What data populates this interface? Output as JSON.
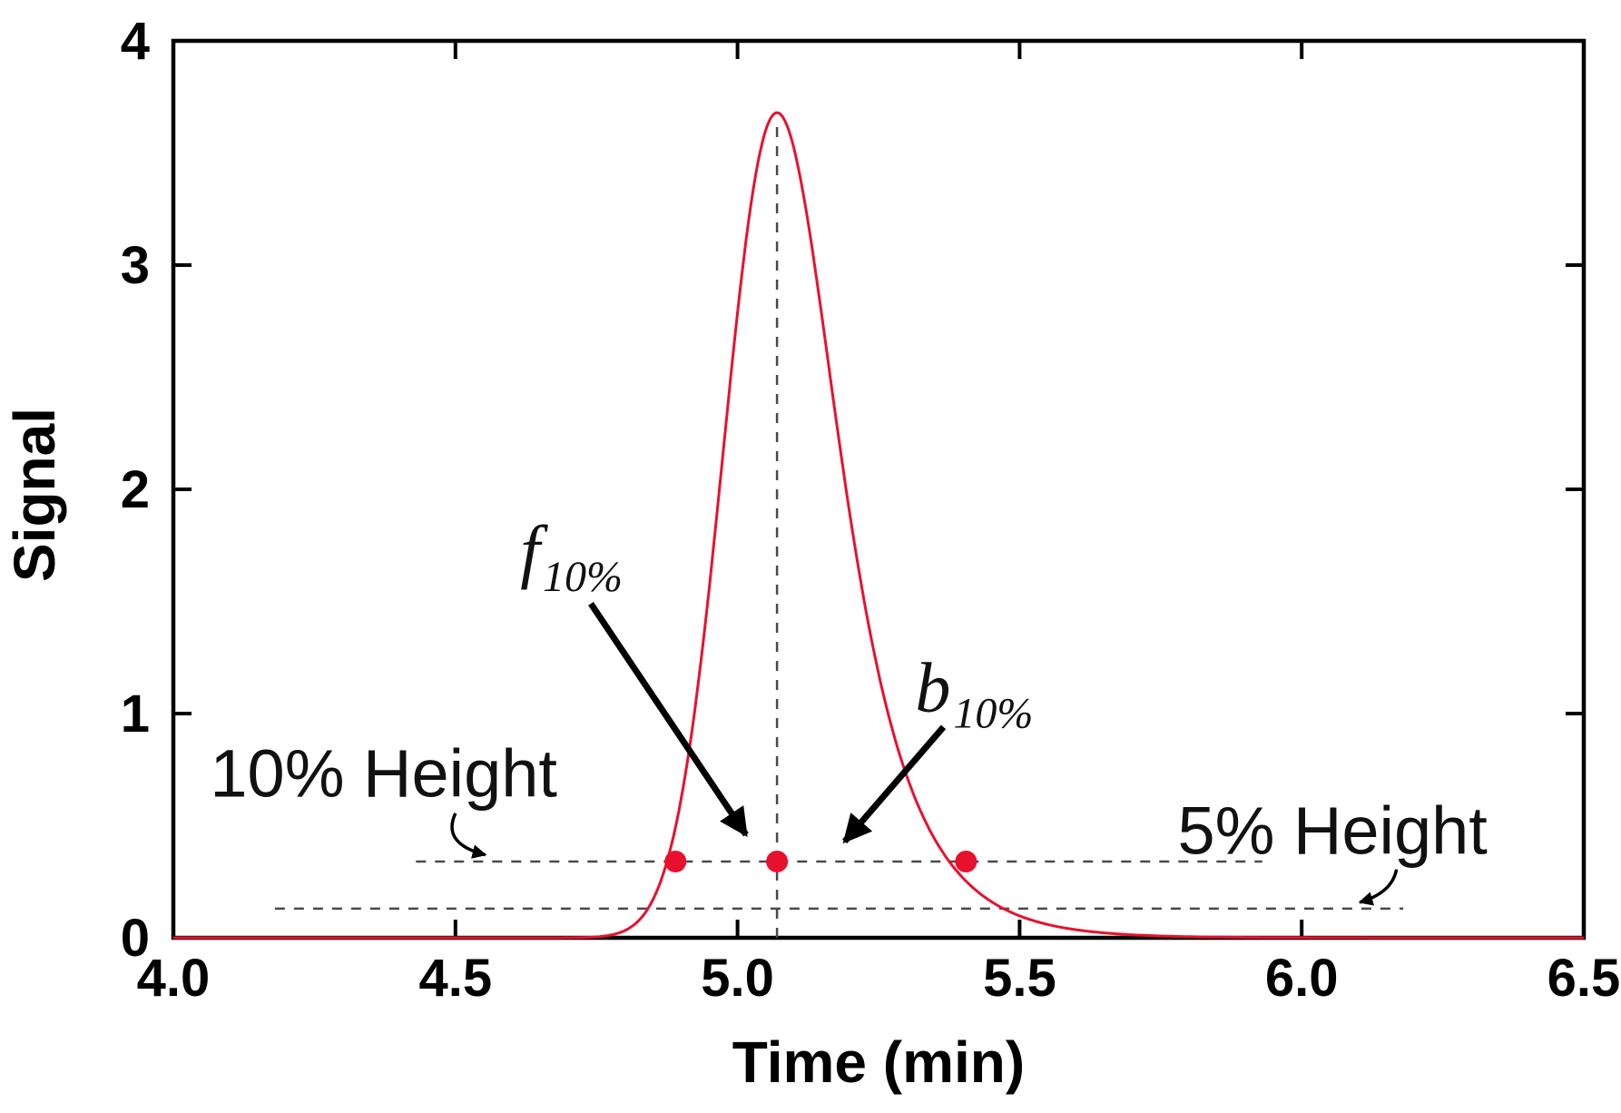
{
  "chart_data": {
    "type": "line",
    "title": "",
    "xlabel": "Time (min)",
    "ylabel": "Signal",
    "xlim": [
      4.0,
      6.5
    ],
    "ylim": [
      0,
      4
    ],
    "grid": false,
    "legend": "none",
    "x_ticks": [
      4.0,
      4.5,
      5.0,
      5.5,
      6.0,
      6.5
    ],
    "x_tick_labels": [
      "4.0",
      "4.5",
      "5.0",
      "5.5",
      "6.0",
      "6.5"
    ],
    "y_ticks": [
      0,
      1,
      2,
      3,
      4
    ],
    "y_tick_labels": [
      "0",
      "1",
      "2",
      "3",
      "4"
    ],
    "peak": {
      "model": "exponentially_modified_gaussian",
      "description": "tailing chromatographic peak",
      "gaussian_center": 5.0,
      "sigma": 0.078,
      "tau": 0.1,
      "apex_time": 5.07,
      "apex_height": 3.68,
      "color": "#e8112d"
    },
    "apex_line": {
      "x": 5.07,
      "y0": 0,
      "y1": 3.64,
      "style": "dashed"
    },
    "ten_pct_line": {
      "y": 0.34,
      "x0": 4.43,
      "x1": 5.93,
      "style": "dashed"
    },
    "five_pct_line": {
      "y": 0.13,
      "x0": 4.18,
      "x1": 6.18,
      "style": "dashed"
    },
    "marker_color": "#e8112d",
    "markers": [
      {
        "x": 4.89,
        "y": 0.34,
        "meaning": "front crossing at 10% height"
      },
      {
        "x": 5.07,
        "y": 0.34,
        "meaning": "apex line at 10% height"
      },
      {
        "x": 5.405,
        "y": 0.34,
        "meaning": "back crossing at 10% height"
      }
    ],
    "annotations": [
      {
        "id": "f10",
        "kind": "math",
        "main": "f",
        "sub": "10%",
        "text_x": 4.615,
        "text_y": 1.62,
        "arrow": {
          "x1": 4.74,
          "y1": 1.49,
          "x2": 5.015,
          "y2": 0.46,
          "width": "thick"
        }
      },
      {
        "id": "b10",
        "kind": "math",
        "main": "b",
        "sub": "10%",
        "text_x": 5.315,
        "text_y": 1.01,
        "arrow": {
          "x1": 5.365,
          "y1": 0.94,
          "x2": 5.19,
          "y2": 0.43,
          "width": "thick"
        }
      },
      {
        "id": "h10",
        "kind": "plain",
        "text": "10% Height",
        "text_x": 4.065,
        "text_y": 0.63,
        "arrow": {
          "x1": 4.5,
          "y1": 0.555,
          "cx": 4.475,
          "cy": 0.42,
          "x2": 4.553,
          "y2": 0.37,
          "width": "thin"
        }
      },
      {
        "id": "h5",
        "kind": "plain",
        "text": "5% Height",
        "text_x": 5.78,
        "text_y": 0.375,
        "arrow": {
          "x1": 6.168,
          "y1": 0.305,
          "cx": 6.16,
          "cy": 0.2,
          "x2": 6.103,
          "y2": 0.158,
          "width": "thin"
        }
      }
    ]
  },
  "figure": {
    "background": "#ffffff",
    "frame_color": "#000000",
    "dashed_line_color": "#4a4a4a"
  }
}
